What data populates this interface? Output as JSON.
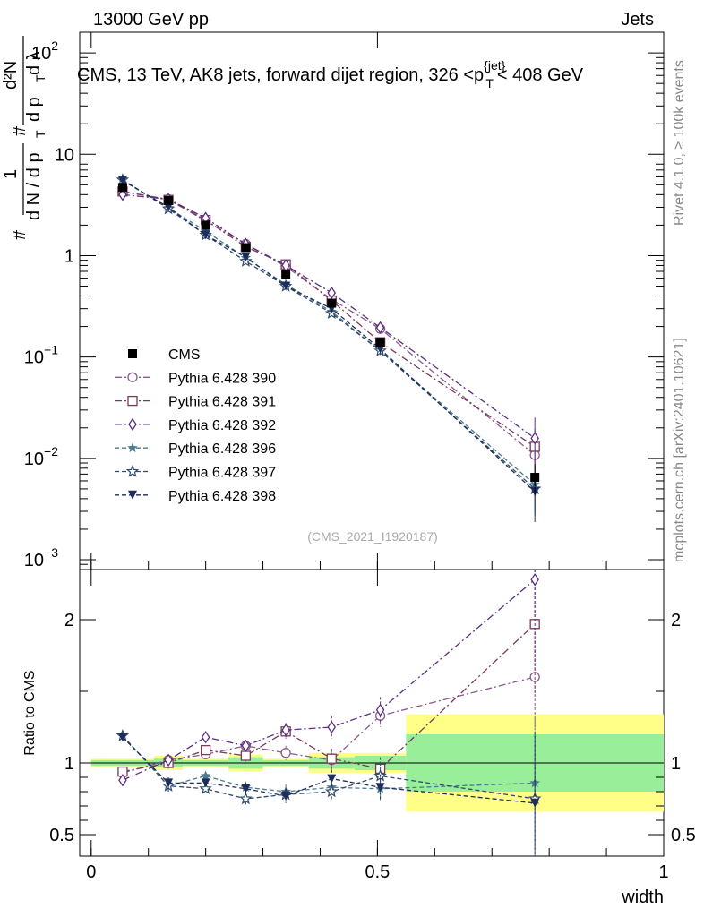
{
  "header": {
    "left": "13000 GeV pp",
    "right": "Jets"
  },
  "side_labels": {
    "rivet": "Rivet 4.1.0, ≥ 100k events",
    "mcplots": "mcplots.cern.ch [arXiv:2401.10621]"
  },
  "chart_data": {
    "type": "scatter",
    "title": "CMS, 13 TeV, AK8 jets, forward dijet region, 326 <p_T^{jet}< 408 GeV",
    "title_parts": {
      "prefix": "CMS, 13 TeV, AK8 jets, forward dijet region, 326 <p",
      "sup": "{jet}",
      "sub": "T",
      "suffix": "< 408 GeV"
    },
    "watermark": "(CMS_2021_I1920187)",
    "xlabel": "width",
    "ylabel_top": "1/dN/dp_T · d²N/dp_T dλ",
    "ylabel_parts": {
      "frac1_num": "1",
      "frac1_den": "d N / d p",
      "frac2_num": "d²N",
      "frac2_den": "d p",
      "frac2_den2": "d λ",
      "sub": "T",
      "hash": "#"
    },
    "ylabel_ratio": "Ratio to CMS",
    "xlim": [
      -0.02,
      1.0
    ],
    "ylim_top_log": [
      0.0008,
      160
    ],
    "ylim_ratio": [
      0.35,
      2.35
    ],
    "x_ticks": [
      0,
      0.5,
      1
    ],
    "x_tick_labels": [
      "0",
      "0.5",
      "1"
    ],
    "y_ticks_top": [
      0.001,
      0.01,
      0.1,
      1,
      10,
      100
    ],
    "y_tick_labels_top": [
      {
        "base": "10",
        "exp": "−3"
      },
      {
        "base": "10",
        "exp": "−2"
      },
      {
        "base": "10",
        "exp": "−1"
      },
      {
        "base": "1",
        "exp": ""
      },
      {
        "base": "10",
        "exp": ""
      },
      {
        "base": "10",
        "exp": "2"
      }
    ],
    "y_ticks_ratio": [
      0.5,
      1,
      2
    ],
    "y_tick_labels_ratio": [
      "0.5",
      "1",
      "2"
    ],
    "x": [
      0.055,
      0.135,
      0.2,
      0.27,
      0.34,
      0.42,
      0.505,
      0.775
    ],
    "bins": [
      [
        0.0,
        0.11
      ],
      [
        0.11,
        0.16
      ],
      [
        0.16,
        0.24
      ],
      [
        0.24,
        0.3
      ],
      [
        0.3,
        0.38
      ],
      [
        0.38,
        0.46
      ],
      [
        0.46,
        0.55
      ],
      [
        0.55,
        1.0
      ]
    ],
    "data_series": {
      "name": "CMS",
      "values": [
        4.7,
        3.5,
        2.0,
        1.2,
        0.65,
        0.34,
        0.14,
        0.0065
      ],
      "band_inner": [
        0.02,
        0.03,
        0.02,
        0.04,
        0.02,
        0.04,
        0.05,
        0.2
      ],
      "band_outer": [
        0.03,
        0.05,
        0.03,
        0.06,
        0.03,
        0.07,
        0.07,
        0.34
      ]
    },
    "series": [
      {
        "name": "Pythia 6.428 390",
        "color": "#8a5a8c",
        "marker": "circle-open",
        "dash": "8,3,2,3",
        "values": [
          4.3,
          3.6,
          2.2,
          1.3,
          0.78,
          0.37,
          0.19,
          0.0108
        ],
        "ratio": [
          0.93,
          1.02,
          1.06,
          1.12,
          1.07,
          1.02,
          1.33,
          1.6
        ],
        "ratio_err": [
          0.03,
          0.04,
          0.03,
          0.04,
          0.05,
          0.07,
          0.08,
          0.35
        ]
      },
      {
        "name": "Pythia 6.428 391",
        "color": "#7a3a5c",
        "marker": "square-open",
        "dash": "8,3,2,3",
        "values": [
          4.3,
          3.55,
          2.25,
          1.22,
          0.82,
          0.36,
          0.14,
          0.013
        ],
        "ratio": [
          0.94,
          1.0,
          1.09,
          1.05,
          1.22,
          1.03,
          0.96,
          1.97
        ],
        "ratio_err": [
          0.03,
          0.04,
          0.03,
          0.04,
          0.05,
          0.07,
          0.08,
          0.5
        ]
      },
      {
        "name": "Pythia 6.428 392",
        "color": "#5a2d82",
        "marker": "diamond-open",
        "dash": "8,3,2,3",
        "values": [
          4.0,
          3.6,
          2.35,
          1.3,
          0.8,
          0.43,
          0.195,
          0.0158
        ],
        "ratio": [
          0.88,
          1.02,
          1.18,
          1.12,
          1.23,
          1.25,
          1.37,
          2.28
        ],
        "ratio_err": [
          0.03,
          0.04,
          0.04,
          0.04,
          0.05,
          0.08,
          0.09,
          0.6
        ]
      },
      {
        "name": "Pythia 6.428 396",
        "color": "#4a7a8c",
        "marker": "star-filled",
        "dash": "5,3",
        "values": [
          5.6,
          2.95,
          1.75,
          0.95,
          0.52,
          0.28,
          0.115,
          0.0055
        ],
        "ratio": [
          1.19,
          0.84,
          0.91,
          0.83,
          0.8,
          0.83,
          0.82,
          0.86
        ],
        "ratio_err": [
          0.03,
          0.04,
          0.03,
          0.04,
          0.05,
          0.06,
          0.08,
          0.45
        ]
      },
      {
        "name": "Pythia 6.428 397",
        "color": "#2e4a6e",
        "marker": "star-open",
        "dash": "5,3",
        "values": [
          5.6,
          2.9,
          1.6,
          0.88,
          0.5,
          0.27,
          0.115,
          0.005
        ],
        "ratio": [
          1.19,
          0.84,
          0.82,
          0.75,
          0.78,
          0.8,
          0.91,
          0.75
        ],
        "ratio_err": [
          0.03,
          0.04,
          0.03,
          0.04,
          0.05,
          0.06,
          0.09,
          0.45
        ]
      },
      {
        "name": "Pythia 6.428 398",
        "color": "#1e2d5a",
        "marker": "triangle-down-filled",
        "dash": "5,3",
        "values": [
          5.5,
          3.0,
          1.6,
          0.97,
          0.5,
          0.3,
          0.12,
          0.0047
        ],
        "ratio": [
          1.18,
          0.86,
          0.86,
          0.82,
          0.77,
          0.89,
          0.83,
          0.72
        ],
        "ratio_err": [
          0.03,
          0.04,
          0.03,
          0.04,
          0.05,
          0.06,
          0.09,
          0.5
        ]
      }
    ],
    "legend_position": "left-middle"
  }
}
